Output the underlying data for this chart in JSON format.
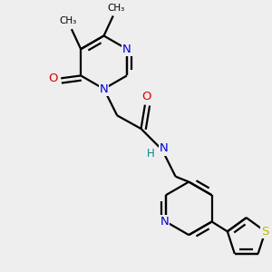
{
  "bg_color": "#eeeeee",
  "bond_color": "#000000",
  "N_color": "#0000dd",
  "O_color": "#dd0000",
  "S_color": "#bbbb00",
  "H_color": "#008888",
  "text_color": "#000000",
  "line_width": 1.6,
  "font_size": 8.5,
  "fig_width": 3.0,
  "fig_height": 3.0,
  "dpi": 100,
  "xlim": [
    0,
    10
  ],
  "ylim": [
    0,
    10
  ]
}
